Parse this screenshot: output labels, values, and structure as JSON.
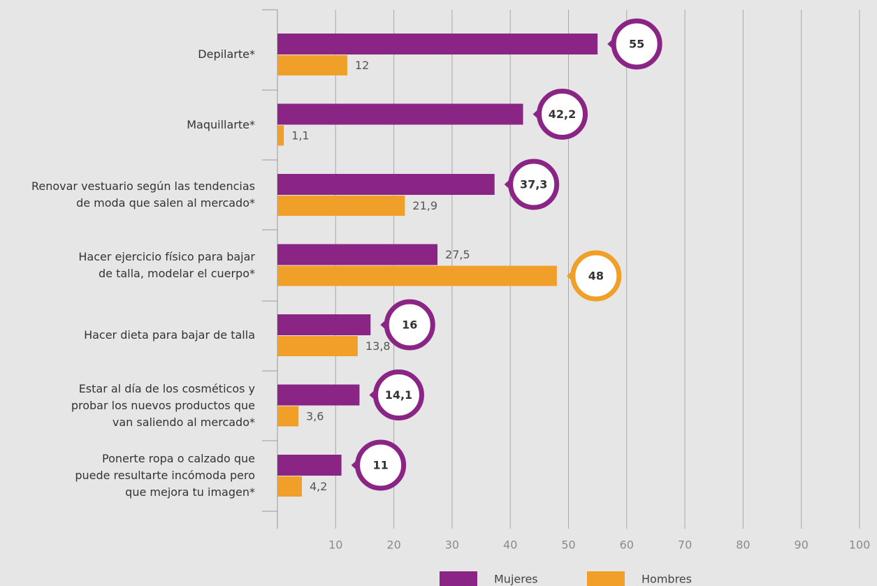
{
  "chart_data": {
    "type": "hbar",
    "categories": [
      "Depilarte*",
      "Maquillarte*",
      "Renovar vestuario según las tendencias\nde moda que salen al mercado*",
      "Hacer ejercicio físico para bajar\nde talla, modelar el cuerpo*",
      "Hacer dieta para bajar de talla",
      "Estar al día de los cosméticos y\nprobar los nuevos productos que\nvan saliendo al mercado*",
      "Ponerte ropa o calzado que\npuede resultarte incómoda pero\nque mejora tu imagen*"
    ],
    "series": [
      {
        "name": "Mujeres",
        "color": "#8b2585",
        "values": [
          55,
          42.2,
          37.3,
          27.5,
          16,
          14.1,
          11
        ],
        "value_labels": [
          "55",
          "42,2",
          "37,3",
          "27,5",
          "16",
          "14,1",
          "11"
        ]
      },
      {
        "name": "Hombres",
        "color": "#f0a028",
        "values": [
          12,
          1.1,
          21.9,
          48,
          13.8,
          3.6,
          4.2
        ],
        "value_labels": [
          "12",
          "1,1",
          "21,9",
          "48",
          "13,8",
          "3,6",
          "4,2"
        ]
      }
    ],
    "xlim": [
      0,
      100
    ],
    "xticks": [
      10,
      20,
      30,
      40,
      50,
      60,
      70,
      80,
      90,
      100
    ],
    "grid": true
  }
}
